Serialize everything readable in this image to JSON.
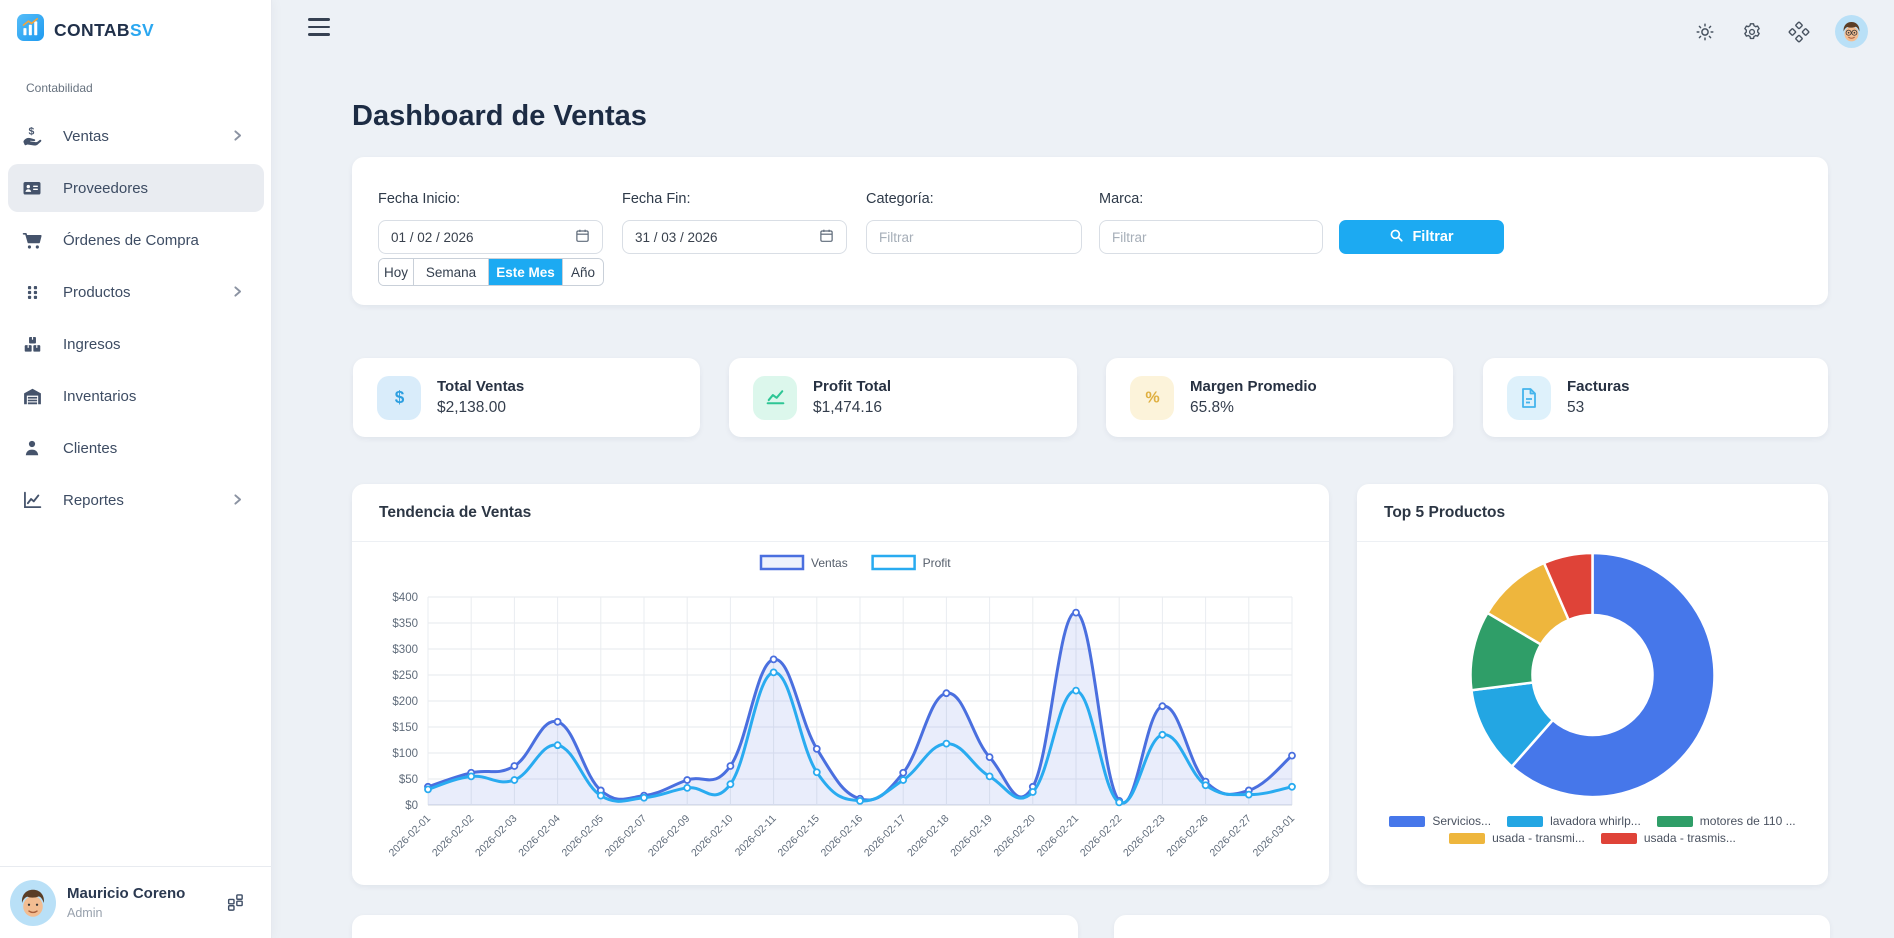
{
  "brand": {
    "name_primary": "CONTAB",
    "name_accent": "SV",
    "accent_color": "#2ba7f0"
  },
  "sidebar": {
    "section_label": "Contabilidad",
    "items": [
      {
        "label": "Ventas",
        "icon": "hand-dollar-icon",
        "expandable": true,
        "active": false
      },
      {
        "label": "Proveedores",
        "icon": "contact-card-icon",
        "expandable": false,
        "active": true
      },
      {
        "label": "Órdenes de Compra",
        "icon": "cart-icon",
        "expandable": false,
        "active": false
      },
      {
        "label": "Productos",
        "icon": "grid-dots-icon",
        "expandable": true,
        "active": false
      },
      {
        "label": "Ingresos",
        "icon": "boxes-icon",
        "expandable": false,
        "active": false
      },
      {
        "label": "Inventarios",
        "icon": "warehouse-icon",
        "expandable": false,
        "active": false
      },
      {
        "label": "Clientes",
        "icon": "person-icon",
        "expandable": false,
        "active": false
      },
      {
        "label": "Reportes",
        "icon": "line-chart-icon",
        "expandable": true,
        "active": false
      }
    ],
    "user": {
      "name": "Mauricio Coreno",
      "role": "Admin"
    }
  },
  "topbar": {
    "icons": [
      "theme-sun-icon",
      "settings-gear-icon",
      "apps-icon",
      "user-avatar"
    ]
  },
  "page": {
    "title": "Dashboard de Ventas"
  },
  "filters": {
    "fields": [
      {
        "label": "Fecha Inicio:",
        "type": "date",
        "value": "01 / 02 / 2026"
      },
      {
        "label": "Fecha Fin:",
        "type": "date",
        "value": "31 / 03 / 2026"
      },
      {
        "label": "Categoría:",
        "type": "text",
        "placeholder": "Filtrar"
      },
      {
        "label": "Marca:",
        "type": "text",
        "placeholder": "Filtrar"
      }
    ],
    "submit_label": "Filtrar",
    "quick_ranges": [
      {
        "label": "Hoy",
        "active": false
      },
      {
        "label": "Semana",
        "active": false
      },
      {
        "label": "Este Mes",
        "active": true
      },
      {
        "label": "Año",
        "active": false
      }
    ],
    "active_color": "#1caaf2"
  },
  "kpis": [
    {
      "title": "Total Ventas",
      "value": "$2,138.00",
      "icon": "dollar-icon",
      "color": "#2d9fe0",
      "bg": "#d9ecfa"
    },
    {
      "title": "Profit Total",
      "value": "$1,474.16",
      "icon": "trend-up-icon",
      "color": "#2ec695",
      "bg": "#dcf7ec"
    },
    {
      "title": "Margen Promedio",
      "value": "65.8%",
      "icon": "percent-icon",
      "color": "#dfaf3f",
      "bg": "#fcf3da"
    },
    {
      "title": "Facturas",
      "value": "53",
      "icon": "invoice-icon",
      "color": "#44b4ec",
      "bg": "#def1fb"
    }
  ],
  "chart_data": [
    {
      "type": "line",
      "title": "Tendencia de Ventas",
      "x": [
        "2026-02-01",
        "2026-02-02",
        "2026-02-03",
        "2026-02-04",
        "2026-02-05",
        "2026-02-07",
        "2026-02-09",
        "2026-02-10",
        "2026-02-11",
        "2026-02-15",
        "2026-02-16",
        "2026-02-17",
        "2026-02-18",
        "2026-02-19",
        "2026-02-20",
        "2026-02-21",
        "2026-02-22",
        "2026-02-23",
        "2026-02-26",
        "2026-02-27",
        "2026-03-01"
      ],
      "series": [
        {
          "name": "Ventas",
          "color": "#4a6fdf",
          "fill": "rgba(78,111,223,0.12)",
          "values": [
            35,
            62,
            75,
            160,
            28,
            18,
            48,
            75,
            280,
            108,
            12,
            62,
            215,
            92,
            35,
            370,
            8,
            190,
            45,
            28,
            95
          ]
        },
        {
          "name": "Profit",
          "color": "#29abf0",
          "fill": "none",
          "values": [
            30,
            55,
            48,
            115,
            18,
            14,
            33,
            40,
            255,
            63,
            8,
            48,
            118,
            55,
            25,
            220,
            5,
            135,
            38,
            20,
            35
          ]
        }
      ],
      "ylim": [
        0,
        400
      ],
      "y_tick_step": 50,
      "y_tick_prefix": "$",
      "grid": true,
      "legend_position": "top"
    },
    {
      "type": "pie",
      "donut": true,
      "title": "Top 5 Productos",
      "labels": [
        "Servicios...",
        "lavadora whirlp...",
        "motores de 110 ...",
        "usada - transmi...",
        "usada - trasmis..."
      ],
      "values": [
        61.5,
        11.5,
        10.5,
        10,
        6.5
      ],
      "value_unit": "percent-estimated-from-arc-angles",
      "colors": [
        "#4677ea",
        "#23a6e3",
        "#2f9e68",
        "#eeb63d",
        "#df4338"
      ],
      "legend_position": "bottom"
    }
  ]
}
